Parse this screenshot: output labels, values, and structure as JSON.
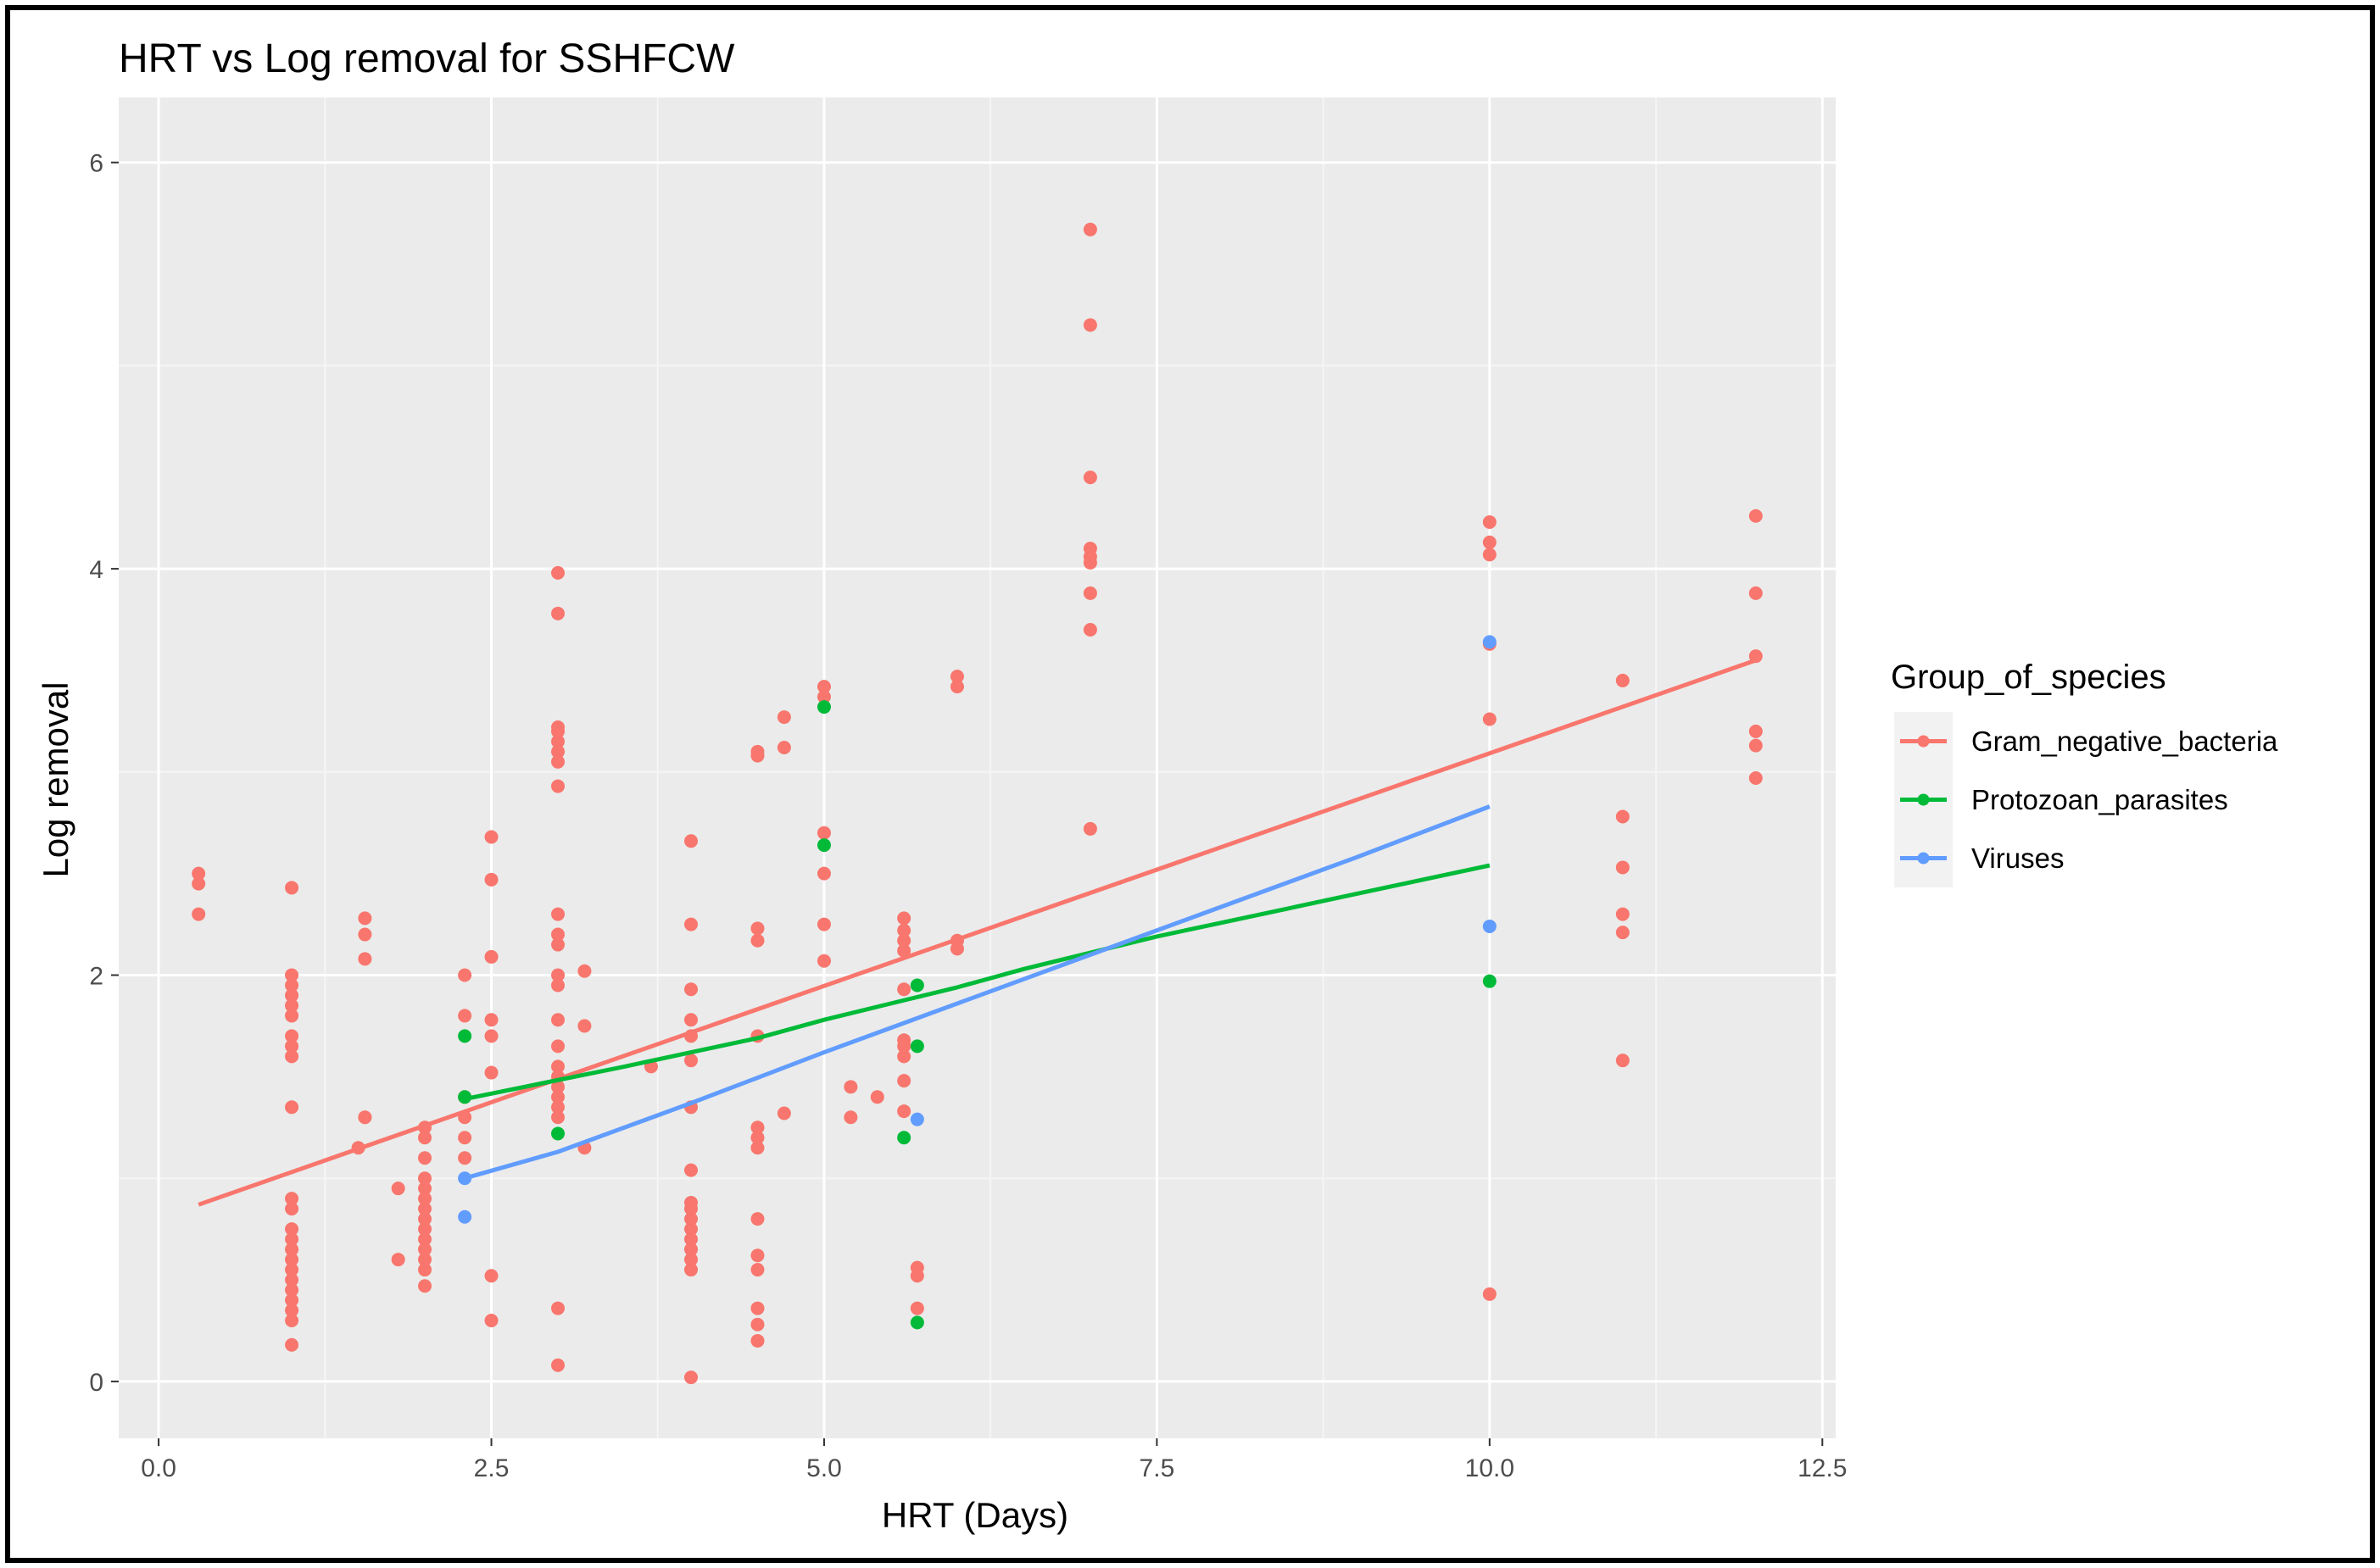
{
  "chart_data": {
    "type": "scatter",
    "title": "HRT vs Log removal for SSHFCW",
    "xlabel": "HRT (Days)",
    "ylabel": "Log removal",
    "xlim": [
      -0.3,
      12.6
    ],
    "ylim": [
      -0.28,
      6.32
    ],
    "xticks": [
      0.0,
      2.5,
      5.0,
      7.5,
      10.0,
      12.5
    ],
    "xtick_labels": [
      "0.0",
      "2.5",
      "5.0",
      "7.5",
      "10.0",
      "12.5"
    ],
    "yticks": [
      0,
      2,
      4,
      6
    ],
    "ytick_labels": [
      "0",
      "2",
      "4",
      "6"
    ],
    "grid": true,
    "legend": {
      "title": "Group_of_species",
      "placement": "right"
    },
    "series": [
      {
        "name": "Gram_negative_bacteria",
        "color": "#F8766D",
        "points": [
          [
            0.3,
            2.5
          ],
          [
            0.3,
            2.45
          ],
          [
            0.3,
            2.3
          ],
          [
            1,
            2.43
          ],
          [
            1,
            2.0
          ],
          [
            1,
            1.95
          ],
          [
            1,
            1.9
          ],
          [
            1,
            1.85
          ],
          [
            1,
            1.8
          ],
          [
            1,
            1.7
          ],
          [
            1,
            1.65
          ],
          [
            1,
            1.6
          ],
          [
            1,
            1.35
          ],
          [
            1,
            0.9
          ],
          [
            1,
            0.85
          ],
          [
            1,
            0.75
          ],
          [
            1,
            0.7
          ],
          [
            1,
            0.65
          ],
          [
            1,
            0.6
          ],
          [
            1,
            0.55
          ],
          [
            1,
            0.5
          ],
          [
            1,
            0.45
          ],
          [
            1,
            0.4
          ],
          [
            1,
            0.35
          ],
          [
            1,
            0.3
          ],
          [
            1,
            0.18
          ],
          [
            1.5,
            1.15
          ],
          [
            1.55,
            2.28
          ],
          [
            1.55,
            2.2
          ],
          [
            1.55,
            2.08
          ],
          [
            1.55,
            1.3
          ],
          [
            1.55,
            1.3
          ],
          [
            1.8,
            0.95
          ],
          [
            1.8,
            0.6
          ],
          [
            2,
            1.25
          ],
          [
            2,
            1.2
          ],
          [
            2,
            1.1
          ],
          [
            2,
            1.0
          ],
          [
            2,
            0.95
          ],
          [
            2,
            0.9
          ],
          [
            2,
            0.85
          ],
          [
            2,
            0.8
          ],
          [
            2,
            0.75
          ],
          [
            2,
            0.7
          ],
          [
            2,
            0.65
          ],
          [
            2,
            0.6
          ],
          [
            2,
            0.55
          ],
          [
            2,
            0.47
          ],
          [
            2.3,
            2.0
          ],
          [
            2.3,
            1.8
          ],
          [
            2.3,
            1.4
          ],
          [
            2.3,
            1.3
          ],
          [
            2.3,
            1.2
          ],
          [
            2.3,
            1.1
          ],
          [
            2.5,
            2.68
          ],
          [
            2.5,
            2.47
          ],
          [
            2.5,
            2.09
          ],
          [
            2.5,
            1.78
          ],
          [
            2.5,
            1.7
          ],
          [
            2.5,
            1.52
          ],
          [
            2.5,
            0.52
          ],
          [
            2.5,
            0.3
          ],
          [
            3,
            3.98
          ],
          [
            3,
            3.78
          ],
          [
            3,
            3.22
          ],
          [
            3,
            3.2
          ],
          [
            3,
            3.15
          ],
          [
            3,
            3.1
          ],
          [
            3,
            3.05
          ],
          [
            3,
            2.93
          ],
          [
            3,
            2.3
          ],
          [
            3,
            2.2
          ],
          [
            3,
            2.15
          ],
          [
            3,
            2.0
          ],
          [
            3,
            1.95
          ],
          [
            3,
            1.78
          ],
          [
            3,
            1.65
          ],
          [
            3,
            1.55
          ],
          [
            3,
            1.5
          ],
          [
            3,
            1.45
          ],
          [
            3,
            1.4
          ],
          [
            3,
            1.35
          ],
          [
            3,
            1.3
          ],
          [
            3,
            0.36
          ],
          [
            3,
            0.08
          ],
          [
            3.2,
            2.02
          ],
          [
            3.2,
            1.75
          ],
          [
            3.2,
            1.15
          ],
          [
            3.7,
            1.55
          ],
          [
            4,
            2.66
          ],
          [
            4,
            2.25
          ],
          [
            4,
            1.93
          ],
          [
            4,
            1.78
          ],
          [
            4,
            1.7
          ],
          [
            4,
            1.58
          ],
          [
            4,
            1.35
          ],
          [
            4,
            1.04
          ],
          [
            4,
            0.88
          ],
          [
            4,
            0.85
          ],
          [
            4,
            0.8
          ],
          [
            4,
            0.75
          ],
          [
            4,
            0.7
          ],
          [
            4,
            0.65
          ],
          [
            4,
            0.6
          ],
          [
            4,
            0.55
          ],
          [
            4,
            0.02
          ],
          [
            4.5,
            3.1
          ],
          [
            4.5,
            3.08
          ],
          [
            4.5,
            2.23
          ],
          [
            4.5,
            2.17
          ],
          [
            4.5,
            1.7
          ],
          [
            4.5,
            1.25
          ],
          [
            4.5,
            1.2
          ],
          [
            4.5,
            1.15
          ],
          [
            4.5,
            0.8
          ],
          [
            4.5,
            0.62
          ],
          [
            4.5,
            0.55
          ],
          [
            4.5,
            0.36
          ],
          [
            4.5,
            0.28
          ],
          [
            4.5,
            0.2
          ],
          [
            4.7,
            3.27
          ],
          [
            4.7,
            3.12
          ],
          [
            4.7,
            1.32
          ],
          [
            5,
            3.42
          ],
          [
            5,
            3.37
          ],
          [
            5,
            2.7
          ],
          [
            5,
            2.5
          ],
          [
            5,
            2.25
          ],
          [
            5,
            2.07
          ],
          [
            5.2,
            1.45
          ],
          [
            5.2,
            1.3
          ],
          [
            5.4,
            1.4
          ],
          [
            5.6,
            2.28
          ],
          [
            5.6,
            2.22
          ],
          [
            5.6,
            2.17
          ],
          [
            5.6,
            2.12
          ],
          [
            5.6,
            1.93
          ],
          [
            5.6,
            1.68
          ],
          [
            5.6,
            1.65
          ],
          [
            5.6,
            1.6
          ],
          [
            5.6,
            1.48
          ],
          [
            5.6,
            1.33
          ],
          [
            5.7,
            0.56
          ],
          [
            5.7,
            0.52
          ],
          [
            5.7,
            0.36
          ],
          [
            6,
            3.47
          ],
          [
            6,
            3.42
          ],
          [
            6,
            2.17
          ],
          [
            6,
            2.13
          ],
          [
            7,
            5.67
          ],
          [
            7,
            5.2
          ],
          [
            7,
            4.45
          ],
          [
            7,
            4.1
          ],
          [
            7,
            4.06
          ],
          [
            7,
            4.03
          ],
          [
            7,
            3.88
          ],
          [
            7,
            3.7
          ],
          [
            7,
            2.72
          ],
          [
            10,
            4.23
          ],
          [
            10,
            4.13
          ],
          [
            10,
            4.07
          ],
          [
            10,
            3.63
          ],
          [
            10,
            3.26
          ],
          [
            10,
            0.43
          ],
          [
            11,
            3.45
          ],
          [
            11,
            2.78
          ],
          [
            11,
            2.53
          ],
          [
            11,
            2.3
          ],
          [
            11,
            2.21
          ],
          [
            11,
            1.58
          ],
          [
            12,
            4.26
          ],
          [
            12,
            3.88
          ],
          [
            12,
            3.57
          ],
          [
            12,
            3.2
          ],
          [
            12,
            3.13
          ],
          [
            12,
            2.97
          ]
        ],
        "trend": [
          [
            0.3,
            0.87
          ],
          [
            12,
            3.55
          ]
        ]
      },
      {
        "name": "Protozoan_parasites",
        "color": "#00BA38",
        "points": [
          [
            2.3,
            1.7
          ],
          [
            2.3,
            1.4
          ],
          [
            3,
            1.22
          ],
          [
            5,
            3.32
          ],
          [
            5,
            2.64
          ],
          [
            5.6,
            1.2
          ],
          [
            5.7,
            1.95
          ],
          [
            5.7,
            1.65
          ],
          [
            5.7,
            0.29
          ],
          [
            10,
            1.97
          ]
        ],
        "trend": [
          [
            2.3,
            1.39
          ],
          [
            2.9,
            1.47
          ],
          [
            3.5,
            1.55
          ],
          [
            4.0,
            1.62
          ],
          [
            4.5,
            1.69
          ],
          [
            5.0,
            1.78
          ],
          [
            5.5,
            1.86
          ],
          [
            6.0,
            1.94
          ],
          [
            6.5,
            2.03
          ],
          [
            7.0,
            2.11
          ],
          [
            7.5,
            2.19
          ],
          [
            8.0,
            2.26
          ],
          [
            8.5,
            2.33
          ],
          [
            9.0,
            2.4
          ],
          [
            9.5,
            2.47
          ],
          [
            10.0,
            2.54
          ]
        ]
      },
      {
        "name": "Viruses",
        "color": "#619CFF",
        "points": [
          [
            2.3,
            0.81
          ],
          [
            2.3,
            1.0
          ],
          [
            5.7,
            1.29
          ],
          [
            10,
            3.64
          ],
          [
            10,
            2.24
          ]
        ],
        "trend": [
          [
            2.3,
            1.0
          ],
          [
            3.0,
            1.13
          ],
          [
            4.0,
            1.37
          ],
          [
            5.0,
            1.62
          ],
          [
            6.0,
            1.86
          ],
          [
            7.0,
            2.1
          ],
          [
            8.0,
            2.34
          ],
          [
            9.0,
            2.58
          ],
          [
            10.0,
            2.83
          ]
        ]
      }
    ]
  }
}
